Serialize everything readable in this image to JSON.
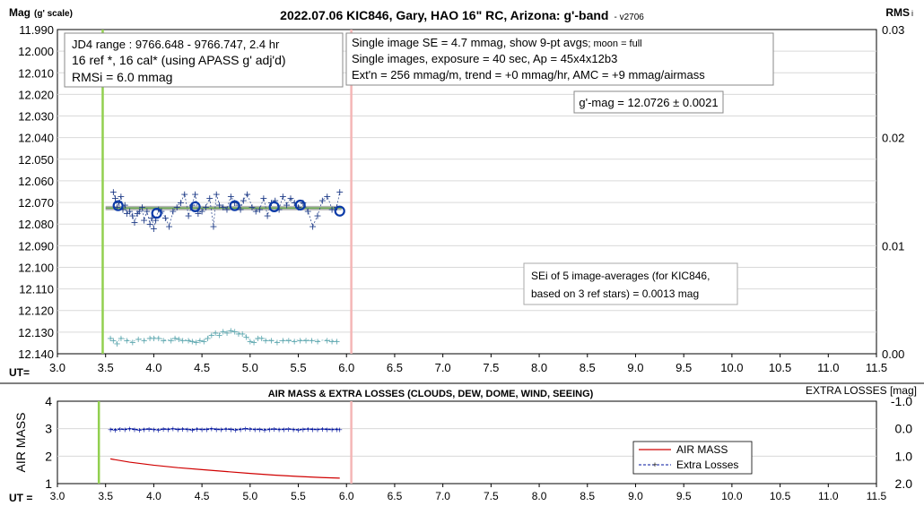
{
  "chart_data": [
    {
      "type": "scatter",
      "title": "2022.07.06 KIC846, Gary, HAO 16\" RC, Arizona: g'-band",
      "version": "- v2706",
      "ylabel_main": "Mag",
      "ylabel_sub": "(g' scale)",
      "y2label": "RMS",
      "y2label_sub": "i",
      "xlabel": "UT=",
      "xlim": [
        3.0,
        11.5
      ],
      "ylim": [
        11.99,
        12.14
      ],
      "y_reversed": true,
      "y2lim": [
        0.0,
        0.03
      ],
      "x_ticks": [
        "3.0",
        "3.5",
        "4.0",
        "4.5",
        "5.0",
        "5.5",
        "6.0",
        "6.5",
        "7.0",
        "7.5",
        "8.0",
        "8.5",
        "9.0",
        "9.5",
        "10.0",
        "10.5",
        "11.0",
        "11.5"
      ],
      "y_ticks": [
        "11.990",
        "12.000",
        "12.010",
        "12.020",
        "12.030",
        "12.040",
        "12.050",
        "12.060",
        "12.070",
        "12.080",
        "12.090",
        "12.100",
        "12.110",
        "12.120",
        "12.130",
        "12.140"
      ],
      "y2_ticks": [
        "0.03",
        "0.02",
        "0.01",
        "0.00"
      ],
      "vlines": [
        {
          "x": 3.47,
          "color": "#92d050"
        },
        {
          "x": 6.05,
          "color": "#f4b6b6"
        }
      ],
      "fit_line": {
        "x": [
          3.5,
          5.95
        ],
        "y": [
          12.0726,
          12.0726
        ]
      },
      "info_box_1": [
        "JD4 range : 9766.648 - 9766.747,  2.4 hr",
        "16 ref *, 16 cal* (using APASS g' adj'd)",
        "RMSi = 6.0 mmag"
      ],
      "info_box_2_line1": "Single image SE = 4.7 mmag, show  9-pt avgs",
      "info_box_2_line1_small": "; moon = full",
      "info_box_2_lines": [
        "Single images, exposure = 40 sec, Ap = 45x4x12b3",
        "Ext'n = 256 mmag/m, trend = +0 mmag/hr, AMC = +9 mmag/airmass"
      ],
      "mag_box": "g'-mag = 12.0726 ± 0.0021",
      "sei_box": [
        "SEi of 5 image-averages (for KIC846,",
        "based on 3 ref stars) = 0.0013 mag"
      ],
      "series": [
        {
          "name": "single images",
          "color": "#1f3c88",
          "x": [
            3.58,
            3.6,
            3.62,
            3.64,
            3.66,
            3.68,
            3.7,
            3.72,
            3.75,
            3.78,
            3.8,
            3.83,
            3.85,
            3.88,
            3.9,
            3.93,
            3.96,
            3.98,
            4.0,
            4.02,
            4.05,
            4.08,
            4.12,
            4.16,
            4.2,
            4.24,
            4.28,
            4.32,
            4.36,
            4.4,
            4.43,
            4.46,
            4.5,
            4.54,
            4.58,
            4.62,
            4.65,
            4.68,
            4.72,
            4.76,
            4.8,
            4.84,
            4.88,
            4.9,
            4.93,
            4.97,
            5.02,
            5.06,
            5.1,
            5.14,
            5.18,
            5.22,
            5.26,
            5.3,
            5.34,
            5.38,
            5.42,
            5.46,
            5.5,
            5.55,
            5.6,
            5.65,
            5.7,
            5.75,
            5.8,
            5.85,
            5.9,
            5.93
          ],
          "y": [
            12.065,
            12.068,
            12.072,
            12.07,
            12.067,
            12.073,
            12.071,
            12.075,
            12.074,
            12.076,
            12.079,
            12.075,
            12.074,
            12.072,
            12.078,
            12.074,
            12.08,
            12.077,
            12.082,
            12.078,
            12.073,
            12.074,
            12.077,
            12.081,
            12.074,
            12.072,
            12.07,
            12.066,
            12.076,
            12.071,
            12.066,
            12.075,
            12.074,
            12.072,
            12.068,
            12.081,
            12.066,
            12.071,
            12.072,
            12.073,
            12.067,
            12.07,
            12.071,
            12.073,
            12.069,
            12.066,
            12.072,
            12.074,
            12.073,
            12.068,
            12.076,
            12.07,
            12.069,
            12.073,
            12.067,
            12.071,
            12.068,
            12.07,
            12.072,
            12.07,
            12.074,
            12.081,
            12.076,
            12.069,
            12.067,
            12.073,
            12.072,
            12.065
          ]
        },
        {
          "name": "9-pt averages",
          "color": "#0b3aa8",
          "x": [
            3.63,
            4.03,
            4.43,
            4.84,
            5.25,
            5.52,
            5.93
          ],
          "y": [
            12.0715,
            12.075,
            12.072,
            12.0715,
            12.072,
            12.0712,
            12.074
          ]
        },
        {
          "name": "RMSi",
          "color": "#5fa8b0",
          "axis": "right",
          "x": [
            3.55,
            3.58,
            3.62,
            3.66,
            3.72,
            3.78,
            3.84,
            3.9,
            3.96,
            4.0,
            4.05,
            4.1,
            4.18,
            4.22,
            4.26,
            4.3,
            4.36,
            4.4,
            4.44,
            4.48,
            4.52,
            4.56,
            4.6,
            4.64,
            4.68,
            4.72,
            4.76,
            4.8,
            4.84,
            4.88,
            4.92,
            4.96,
            5.0,
            5.04,
            5.08,
            5.12,
            5.16,
            5.22,
            5.28,
            5.34,
            5.4,
            5.46,
            5.52,
            5.58,
            5.64,
            5.7,
            5.8,
            5.85,
            5.9
          ],
          "y": [
            0.0015,
            0.0013,
            0.001,
            0.0015,
            0.0013,
            0.0011,
            0.0014,
            0.0013,
            0.0015,
            0.0015,
            0.0015,
            0.0013,
            0.0013,
            0.0015,
            0.0014,
            0.0013,
            0.0013,
            0.0012,
            0.0011,
            0.0013,
            0.0012,
            0.0015,
            0.0018,
            0.002,
            0.0018,
            0.0021,
            0.002,
            0.0022,
            0.0021,
            0.0019,
            0.0019,
            0.0016,
            0.0012,
            0.0011,
            0.0015,
            0.0015,
            0.0013,
            0.0013,
            0.0011,
            0.0013,
            0.0013,
            0.0012,
            0.0013,
            0.0013,
            0.0013,
            0.0012,
            0.0013,
            0.0012,
            0.0012
          ]
        }
      ]
    },
    {
      "type": "line",
      "title": "AIR MASS & EXTRA LOSSES (CLOUDS, DEW, DOME, WIND, SEEING)",
      "ylabel": "AIR MASS",
      "y2label": "EXTRA LOSSES [mag]",
      "xlabel": "UT =",
      "xlim": [
        3.0,
        11.5
      ],
      "ylim": [
        1,
        4
      ],
      "y2lim": [
        -1.0,
        2.0
      ],
      "y2_reversed": true,
      "x_ticks": [
        "3.0",
        "3.5",
        "4.0",
        "4.5",
        "5.0",
        "5.5",
        "6.0",
        "6.5",
        "7.0",
        "7.5",
        "8.0",
        "8.5",
        "9.0",
        "9.5",
        "10.0",
        "10.5",
        "11.0",
        "11.5"
      ],
      "y_ticks": [
        "4",
        "3",
        "2",
        "1"
      ],
      "y2_ticks": [
        "-1.0",
        "0.0",
        "1.0",
        "2.0"
      ],
      "vlines": [
        {
          "x": 3.43,
          "color": "#92d050"
        },
        {
          "x": 6.05,
          "color": "#f4b6b6"
        }
      ],
      "legend_position": "bottom-right",
      "series": [
        {
          "name": "AIR MASS",
          "color": "#d00000",
          "x": [
            3.55,
            3.75,
            4.0,
            4.25,
            4.5,
            4.75,
            5.0,
            5.25,
            5.5,
            5.75,
            5.93
          ],
          "y": [
            1.9,
            1.78,
            1.67,
            1.58,
            1.51,
            1.44,
            1.37,
            1.31,
            1.26,
            1.22,
            1.2
          ]
        },
        {
          "name": "Extra Losses",
          "color": "#00139f",
          "axis": "right",
          "x": [
            3.55,
            3.6,
            3.65,
            3.7,
            3.75,
            3.8,
            3.85,
            3.9,
            3.95,
            4.0,
            4.05,
            4.1,
            4.15,
            4.2,
            4.25,
            4.3,
            4.35,
            4.4,
            4.45,
            4.5,
            4.55,
            4.6,
            4.65,
            4.7,
            4.75,
            4.8,
            4.85,
            4.9,
            4.95,
            5.0,
            5.05,
            5.1,
            5.15,
            5.2,
            5.25,
            5.3,
            5.35,
            5.4,
            5.45,
            5.5,
            5.55,
            5.6,
            5.65,
            5.7,
            5.75,
            5.8,
            5.85,
            5.9,
            5.93
          ],
          "y": [
            0.02,
            0.04,
            0.01,
            0.03,
            0.0,
            0.02,
            0.05,
            0.02,
            0.01,
            0.03,
            0.04,
            0.01,
            0.02,
            0.0,
            0.03,
            0.01,
            0.02,
            0.04,
            0.01,
            0.03,
            0.02,
            0.0,
            0.02,
            0.03,
            0.01,
            0.02,
            0.04,
            0.02,
            0.0,
            0.01,
            0.03,
            0.02,
            0.04,
            0.02,
            0.01,
            0.03,
            0.02,
            0.01,
            0.03,
            0.04,
            0.02,
            0.01,
            0.02,
            0.03,
            0.01,
            0.02,
            0.03,
            0.02,
            0.03
          ]
        }
      ]
    }
  ]
}
